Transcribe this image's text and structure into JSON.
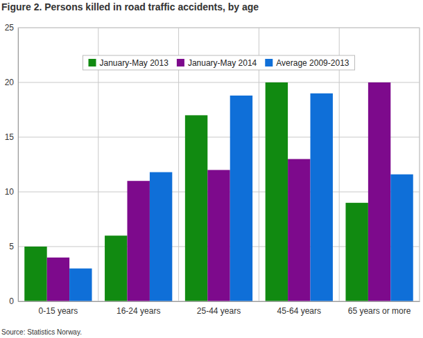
{
  "chart_data": {
    "type": "bar",
    "title": "Figure 2. Persons killed in road traffic accidents, by age",
    "source": "Source: Statistics Norway.",
    "categories": [
      "0-15 years",
      "16-24 years",
      "25-44 years",
      "45-64 years",
      "65 years or more"
    ],
    "series": [
      {
        "name": "January-May 2013",
        "color": "#118a11",
        "values": [
          5,
          6,
          17,
          20,
          9
        ]
      },
      {
        "name": "January-May 2014",
        "color": "#7d0a8c",
        "values": [
          4,
          11,
          12,
          13,
          20
        ]
      },
      {
        "name": "Average 2009-2013",
        "color": "#0f6fd8",
        "values": [
          3,
          11.8,
          18.8,
          19,
          11.6
        ]
      }
    ],
    "ylim": [
      0,
      25
    ],
    "yticks": [
      0,
      5,
      10,
      15,
      20,
      25
    ],
    "grid": true,
    "legend": "top"
  }
}
